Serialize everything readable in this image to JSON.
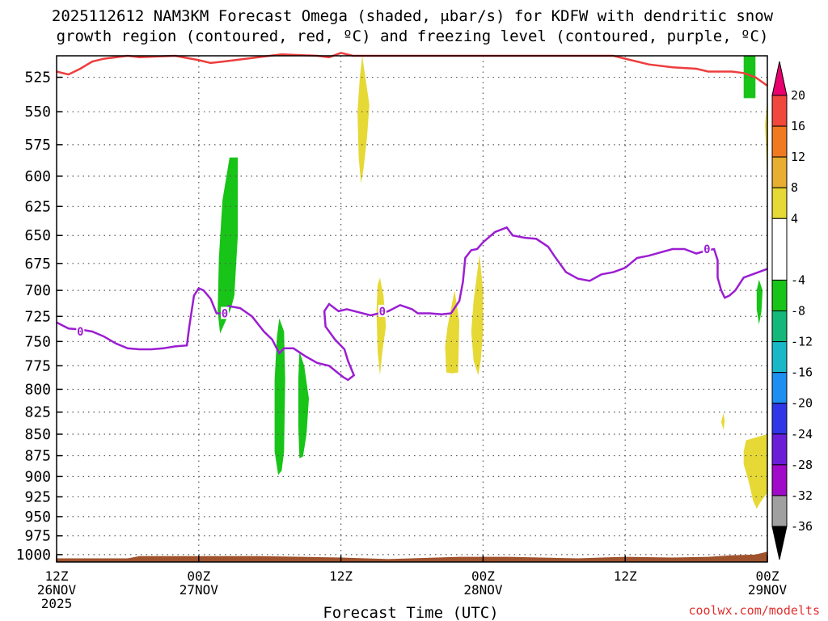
{
  "chart_data": {
    "type": "heatmap",
    "title_line1": "2025112612 NAM3KM Forecast Omega (shaded, μbar/s) for KDFW with dendritic snow",
    "title_line2": "growth region (contoured, red, ºC) and freezing level (contoured, purple, ºC)",
    "xlabel": "Forecast Time (UTC)",
    "credit": "coolwx.com/modelts",
    "x_range_hours": [
      0,
      60
    ],
    "x_ticks": [
      {
        "h": 0,
        "l1": "12Z",
        "l2": "26NOV",
        "l3": "2025"
      },
      {
        "h": 12,
        "l1": "00Z",
        "l2": "27NOV",
        "l3": ""
      },
      {
        "h": 24,
        "l1": "12Z",
        "l2": "",
        "l3": ""
      },
      {
        "h": 36,
        "l1": "00Z",
        "l2": "28NOV",
        "l3": ""
      },
      {
        "h": 48,
        "l1": "12Z",
        "l2": "",
        "l3": ""
      },
      {
        "h": 60,
        "l1": "00Z",
        "l2": "29NOV",
        "l3": ""
      }
    ],
    "y_range_hPa": [
      510,
      1010
    ],
    "y_ticks": [
      525,
      550,
      575,
      600,
      625,
      650,
      675,
      700,
      725,
      750,
      775,
      800,
      825,
      850,
      875,
      900,
      925,
      950,
      975,
      1000
    ],
    "colorbar": {
      "labels": [
        "20",
        "16",
        "12",
        "8",
        "4",
        "-4",
        "-8",
        "-12",
        "-16",
        "-20",
        "-24",
        "-28",
        "-32",
        "-36"
      ],
      "bins": [
        {
          "from": 20,
          "to": 24,
          "color": "#e8006e"
        },
        {
          "from": 16,
          "to": 20,
          "color": "#f0483c"
        },
        {
          "from": 12,
          "to": 16,
          "color": "#f07a22"
        },
        {
          "from": 8,
          "to": 12,
          "color": "#e8ae32"
        },
        {
          "from": 4,
          "to": 8,
          "color": "#e6d935"
        },
        {
          "from": -4,
          "to": 4,
          "color": "#ffffff"
        },
        {
          "from": -8,
          "to": -4,
          "color": "#17c417"
        },
        {
          "from": -12,
          "to": -8,
          "color": "#14b87a"
        },
        {
          "from": -16,
          "to": -12,
          "color": "#18b8c8"
        },
        {
          "from": -20,
          "to": -16,
          "color": "#1e8ef0"
        },
        {
          "from": -24,
          "to": -20,
          "color": "#2e36e8"
        },
        {
          "from": -28,
          "to": -24,
          "color": "#6a1ed8"
        },
        {
          "from": -32,
          "to": -28,
          "color": "#a00ac8"
        },
        {
          "from": -36,
          "to": -32,
          "color": "#a0a0a0"
        },
        {
          "from": -40,
          "to": -36,
          "color": "#000000"
        }
      ]
    },
    "omega_regions": [
      {
        "color": "#17c417",
        "pts": [
          [
            14.6,
            585
          ],
          [
            15.3,
            585
          ],
          [
            15.3,
            650
          ],
          [
            15.0,
            705
          ],
          [
            14.7,
            718
          ],
          [
            13.8,
            742
          ],
          [
            13.6,
            720
          ],
          [
            13.7,
            670
          ],
          [
            14.0,
            620
          ]
        ]
      },
      {
        "color": "#17c417",
        "pts": [
          [
            18.8,
            727
          ],
          [
            19.2,
            740
          ],
          [
            19.3,
            790
          ],
          [
            19.2,
            870
          ],
          [
            19.0,
            893
          ],
          [
            18.7,
            898
          ],
          [
            18.4,
            870
          ],
          [
            18.4,
            790
          ],
          [
            18.6,
            745
          ]
        ]
      },
      {
        "color": "#17c417",
        "pts": [
          [
            20.5,
            760
          ],
          [
            20.9,
            775
          ],
          [
            21.3,
            810
          ],
          [
            21.1,
            850
          ],
          [
            20.8,
            876
          ],
          [
            20.5,
            878
          ],
          [
            20.4,
            840
          ],
          [
            20.4,
            790
          ]
        ]
      },
      {
        "color": "#17c417",
        "pts": [
          [
            58.0,
            510
          ],
          [
            59.0,
            510
          ],
          [
            59.0,
            540
          ],
          [
            58.0,
            540
          ]
        ]
      },
      {
        "color": "#17c417",
        "pts": [
          [
            59.3,
            690
          ],
          [
            59.6,
            700
          ],
          [
            59.5,
            720
          ],
          [
            59.3,
            733
          ],
          [
            59.1,
            718
          ],
          [
            59.1,
            700
          ]
        ]
      },
      {
        "color": "#e6d935",
        "pts": [
          [
            25.8,
            510
          ],
          [
            26.4,
            545
          ],
          [
            26.2,
            570
          ],
          [
            25.9,
            595
          ],
          [
            25.7,
            606
          ],
          [
            25.5,
            585
          ],
          [
            25.4,
            550
          ],
          [
            25.6,
            525
          ]
        ]
      },
      {
        "color": "#e6d935",
        "pts": [
          [
            27.3,
            688
          ],
          [
            27.6,
            705
          ],
          [
            27.8,
            735
          ],
          [
            27.5,
            760
          ],
          [
            27.3,
            785
          ],
          [
            27.1,
            760
          ],
          [
            27.0,
            720
          ],
          [
            27.1,
            695
          ]
        ]
      },
      {
        "color": "#e6d935",
        "pts": [
          [
            33.6,
            700
          ],
          [
            34.0,
            730
          ],
          [
            33.9,
            782
          ],
          [
            33.4,
            783
          ],
          [
            32.9,
            782
          ],
          [
            32.8,
            755
          ],
          [
            33.0,
            735
          ]
        ]
      },
      {
        "color": "#e6d935",
        "pts": [
          [
            35.7,
            667
          ],
          [
            36.0,
            700
          ],
          [
            36.0,
            740
          ],
          [
            35.8,
            770
          ],
          [
            35.6,
            785
          ],
          [
            35.2,
            770
          ],
          [
            35.0,
            740
          ],
          [
            35.2,
            710
          ]
        ]
      },
      {
        "color": "#e6d935",
        "pts": [
          [
            56.3,
            826
          ],
          [
            56.4,
            835
          ],
          [
            56.3,
            845
          ],
          [
            56.1,
            836
          ]
        ]
      },
      {
        "color": "#e6d935",
        "pts": [
          [
            58.2,
            857
          ],
          [
            60.0,
            850
          ],
          [
            60.0,
            920
          ],
          [
            59.4,
            932
          ],
          [
            59.1,
            940
          ],
          [
            58.8,
            930
          ],
          [
            58.4,
            905
          ],
          [
            58.0,
            885
          ],
          [
            58.0,
            870
          ]
        ]
      },
      {
        "color": "#e6d935",
        "pts": [
          [
            59.8,
            560
          ],
          [
            60.0,
            540
          ],
          [
            60.0,
            605
          ],
          [
            59.9,
            580
          ]
        ]
      }
    ],
    "dendritic_line": [
      [
        0,
        521
      ],
      [
        1,
        523
      ],
      [
        2,
        519
      ],
      [
        3,
        514
      ],
      [
        4,
        512
      ],
      [
        6,
        510
      ],
      [
        7,
        511
      ],
      [
        10,
        510
      ],
      [
        12,
        513
      ],
      [
        13,
        515
      ],
      [
        14,
        514
      ],
      [
        16,
        512
      ],
      [
        18,
        510
      ],
      [
        19,
        509
      ],
      [
        22,
        510
      ],
      [
        23,
        511
      ],
      [
        24,
        508
      ],
      [
        25,
        510
      ],
      [
        47,
        510
      ],
      [
        48,
        512
      ],
      [
        50,
        516
      ],
      [
        52,
        518
      ],
      [
        54,
        519
      ],
      [
        55,
        521
      ],
      [
        56,
        521
      ],
      [
        57,
        521
      ],
      [
        58,
        522
      ],
      [
        59,
        525
      ],
      [
        60,
        531
      ]
    ],
    "freezing_line": [
      [
        0,
        731
      ],
      [
        1,
        737
      ],
      [
        2,
        738
      ],
      [
        3,
        740
      ],
      [
        4,
        745
      ],
      [
        5,
        752
      ],
      [
        6,
        757
      ],
      [
        7,
        758
      ],
      [
        8,
        758
      ],
      [
        9,
        757
      ],
      [
        10,
        755
      ],
      [
        11,
        754
      ],
      [
        11.2,
        735
      ],
      [
        11.6,
        705
      ],
      [
        12,
        698
      ],
      [
        12.4,
        700
      ],
      [
        13,
        708
      ],
      [
        13.5,
        722
      ],
      [
        14.0,
        722
      ],
      [
        14.5,
        715
      ],
      [
        15.5,
        717
      ],
      [
        16.5,
        725
      ],
      [
        17.5,
        740
      ],
      [
        18.2,
        748
      ],
      [
        18.8,
        762
      ],
      [
        19.2,
        757
      ],
      [
        20.0,
        757
      ],
      [
        21.0,
        765
      ],
      [
        22.0,
        772
      ],
      [
        23.0,
        775
      ],
      [
        23.7,
        782
      ],
      [
        24.2,
        787
      ],
      [
        24.6,
        790
      ],
      [
        25.1,
        785
      ],
      [
        24.6,
        770
      ],
      [
        24.3,
        758
      ],
      [
        23.5,
        748
      ],
      [
        22.7,
        735
      ],
      [
        22.6,
        720
      ],
      [
        23.0,
        713
      ],
      [
        23.8,
        720
      ],
      [
        24.5,
        718
      ],
      [
        25.5,
        721
      ],
      [
        26.5,
        724
      ],
      [
        28,
        720
      ],
      [
        29,
        714
      ],
      [
        30,
        718
      ],
      [
        30.5,
        722
      ],
      [
        31.5,
        722
      ],
      [
        32.5,
        723
      ],
      [
        33.3,
        722
      ],
      [
        34.0,
        710
      ],
      [
        34.3,
        692
      ],
      [
        34.5,
        670
      ],
      [
        35.0,
        663
      ],
      [
        35.5,
        662
      ],
      [
        36.0,
        656
      ],
      [
        37.0,
        647
      ],
      [
        38.0,
        643
      ],
      [
        38.5,
        650
      ],
      [
        39.5,
        652
      ],
      [
        40.5,
        653
      ],
      [
        41.5,
        660
      ],
      [
        42.0,
        668
      ],
      [
        43.0,
        683
      ],
      [
        44.0,
        689
      ],
      [
        45.0,
        691
      ],
      [
        46.0,
        685
      ],
      [
        47.0,
        683
      ],
      [
        48.0,
        679
      ],
      [
        49.0,
        670
      ],
      [
        50.0,
        668
      ],
      [
        51.0,
        665
      ],
      [
        52.0,
        662
      ],
      [
        53.0,
        662
      ],
      [
        54.0,
        666
      ],
      [
        55.0,
        663
      ],
      [
        55.5,
        662
      ],
      [
        55.8,
        672
      ],
      [
        55.8,
        688
      ],
      [
        56.1,
        700
      ],
      [
        56.4,
        707
      ],
      [
        56.8,
        705
      ],
      [
        57.3,
        700
      ],
      [
        58.0,
        688
      ],
      [
        59.0,
        684
      ],
      [
        60.0,
        680
      ]
    ],
    "ground": [
      [
        0,
        1005
      ],
      [
        6,
        1005
      ],
      [
        7,
        1002
      ],
      [
        17,
        1002
      ],
      [
        24,
        1004
      ],
      [
        28,
        1006
      ],
      [
        34,
        1003
      ],
      [
        38,
        1003
      ],
      [
        44,
        1005
      ],
      [
        48,
        1003
      ],
      [
        52,
        1004
      ],
      [
        55,
        1003
      ],
      [
        57,
        1001
      ],
      [
        59,
        1000
      ],
      [
        60,
        996
      ]
    ],
    "contour_labels": [
      {
        "text": "0",
        "h": 2.0,
        "p": 740,
        "color": "#9b1ed2"
      },
      {
        "text": "0",
        "h": 14.2,
        "p": 722,
        "color": "#9b1ed2"
      },
      {
        "text": "0",
        "h": 27.5,
        "p": 720,
        "color": "#9b1ed2"
      },
      {
        "text": "0",
        "h": 54.9,
        "p": 662,
        "color": "#9b1ed2"
      }
    ],
    "line_colors": {
      "dendritic": "#ee3d3d",
      "freezing": "#9b1ed2",
      "ground": "#a0522d"
    }
  }
}
